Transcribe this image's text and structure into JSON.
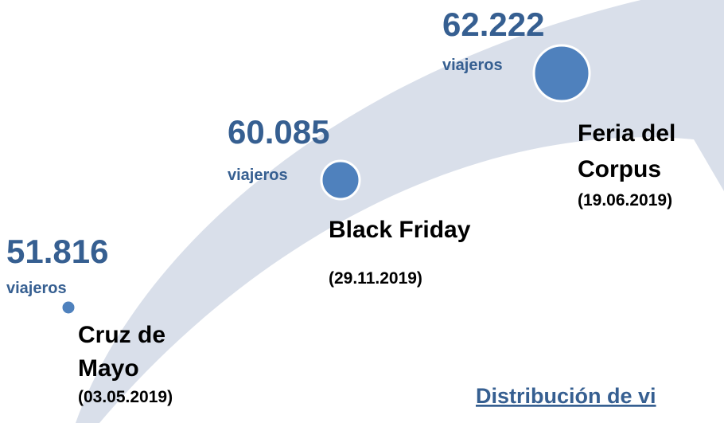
{
  "items": [
    {
      "value": "51.816",
      "unit": "viajeros",
      "event": [
        "Cruz de",
        "Mayo"
      ],
      "date": "(03.05.2019)"
    },
    {
      "value": "60.085",
      "unit": "viajeros",
      "event": [
        "Black Friday"
      ],
      "date": "(29.11.2019)"
    },
    {
      "value": "62.222",
      "unit": "viajeros",
      "event": [
        "Feria del",
        "Corpus"
      ],
      "date": "(19.06.2019)"
    }
  ],
  "heading": "Distribución de vi"
}
